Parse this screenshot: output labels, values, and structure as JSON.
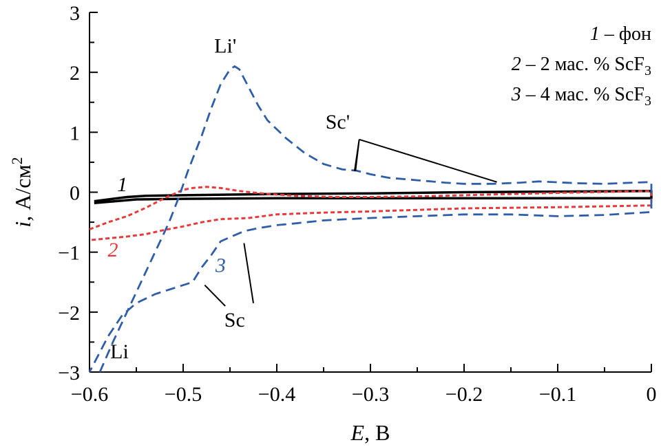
{
  "chart_data": {
    "type": "line",
    "xlabel": {
      "var": "E",
      "rest": ", В"
    },
    "ylabel": {
      "var": "i",
      "rest": ", А/см",
      "sup": "2"
    },
    "xlim": [
      -0.6,
      0
    ],
    "ylim": [
      -3,
      3
    ],
    "xticks": [
      {
        "v": -0.6,
        "label": "−0.6"
      },
      {
        "v": -0.5,
        "label": "−0.5"
      },
      {
        "v": -0.4,
        "label": "−0.4"
      },
      {
        "v": -0.3,
        "label": "−0.3"
      },
      {
        "v": -0.2,
        "label": "−0.2"
      },
      {
        "v": -0.1,
        "label": "−0.1"
      },
      {
        "v": 0,
        "label": "0"
      }
    ],
    "yticks": [
      {
        "v": -3,
        "label": "−3"
      },
      {
        "v": -2,
        "label": "−2"
      },
      {
        "v": -1,
        "label": "−1"
      },
      {
        "v": 0,
        "label": "0"
      },
      {
        "v": 1,
        "label": "1"
      },
      {
        "v": 2,
        "label": "2"
      },
      {
        "v": 3,
        "label": "3"
      }
    ],
    "legend": [
      {
        "num": "1",
        "text": " – фон",
        "sub": ""
      },
      {
        "num": "2",
        "text": " – 2 мас. % ScF",
        "sub": "3"
      },
      {
        "num": "3",
        "text": " – 4 мас. % ScF",
        "sub": "3"
      }
    ],
    "legend_position": "top-right",
    "series": [
      {
        "name": "1",
        "color": "#000000",
        "dash": "solid",
        "points": [
          [
            -0.595,
            -0.15
          ],
          [
            -0.58,
            -0.12
          ],
          [
            -0.56,
            -0.08
          ],
          [
            -0.54,
            -0.06
          ],
          [
            -0.5,
            -0.05
          ],
          [
            -0.45,
            -0.04
          ],
          [
            -0.4,
            -0.03
          ],
          [
            -0.3,
            -0.02
          ],
          [
            -0.2,
            0.0
          ],
          [
            -0.1,
            0.01
          ],
          [
            0.0,
            0.02
          ],
          [
            0.0,
            -0.1
          ],
          [
            -0.1,
            -0.1
          ],
          [
            -0.2,
            -0.1
          ],
          [
            -0.3,
            -0.1
          ],
          [
            -0.4,
            -0.1
          ],
          [
            -0.5,
            -0.11
          ],
          [
            -0.55,
            -0.12
          ],
          [
            -0.595,
            -0.18
          ]
        ]
      },
      {
        "name": "2",
        "color": "#e83a3a",
        "dash": "dot",
        "points": [
          [
            -0.6,
            -0.62
          ],
          [
            -0.58,
            -0.5
          ],
          [
            -0.56,
            -0.4
          ],
          [
            -0.54,
            -0.26
          ],
          [
            -0.52,
            -0.1
          ],
          [
            -0.5,
            0.04
          ],
          [
            -0.49,
            0.07
          ],
          [
            -0.475,
            0.09
          ],
          [
            -0.46,
            0.07
          ],
          [
            -0.44,
            0.02
          ],
          [
            -0.41,
            -0.03
          ],
          [
            -0.38,
            -0.06
          ],
          [
            -0.34,
            -0.08
          ],
          [
            -0.3,
            -0.08
          ],
          [
            -0.25,
            -0.07
          ],
          [
            -0.2,
            -0.05
          ],
          [
            -0.1,
            -0.01
          ],
          [
            0.0,
            0.02
          ],
          [
            0.0,
            -0.22
          ],
          [
            -0.1,
            -0.25
          ],
          [
            -0.2,
            -0.27
          ],
          [
            -0.3,
            -0.32
          ],
          [
            -0.35,
            -0.34
          ],
          [
            -0.4,
            -0.37
          ],
          [
            -0.43,
            -0.43
          ],
          [
            -0.46,
            -0.45
          ],
          [
            -0.48,
            -0.5
          ],
          [
            -0.5,
            -0.57
          ],
          [
            -0.52,
            -0.63
          ],
          [
            -0.54,
            -0.7
          ],
          [
            -0.56,
            -0.74
          ],
          [
            -0.58,
            -0.77
          ],
          [
            -0.6,
            -0.8
          ]
        ]
      },
      {
        "name": "3",
        "color": "#2f5ea8",
        "dash": "dash",
        "points": [
          [
            -0.589,
            -3.0
          ],
          [
            -0.575,
            -2.5
          ],
          [
            -0.56,
            -2.0
          ],
          [
            -0.545,
            -1.5
          ],
          [
            -0.53,
            -1.0
          ],
          [
            -0.515,
            -0.5
          ],
          [
            -0.505,
            -0.1
          ],
          [
            -0.495,
            0.35
          ],
          [
            -0.48,
            0.95
          ],
          [
            -0.47,
            1.4
          ],
          [
            -0.46,
            1.8
          ],
          [
            -0.45,
            2.05
          ],
          [
            -0.445,
            2.1
          ],
          [
            -0.44,
            2.05
          ],
          [
            -0.43,
            1.75
          ],
          [
            -0.42,
            1.45
          ],
          [
            -0.41,
            1.2
          ],
          [
            -0.39,
            0.9
          ],
          [
            -0.37,
            0.65
          ],
          [
            -0.35,
            0.47
          ],
          [
            -0.33,
            0.38
          ],
          [
            -0.315,
            0.36
          ],
          [
            -0.3,
            0.3
          ],
          [
            -0.28,
            0.24
          ],
          [
            -0.25,
            0.2
          ],
          [
            -0.22,
            0.16
          ],
          [
            -0.2,
            0.14
          ],
          [
            -0.17,
            0.14
          ],
          [
            -0.14,
            0.16
          ],
          [
            -0.12,
            0.18
          ],
          [
            -0.08,
            0.15
          ],
          [
            -0.05,
            0.14
          ],
          [
            -0.02,
            0.16
          ],
          [
            0.0,
            0.17
          ],
          [
            0.0,
            -0.33
          ],
          [
            -0.05,
            -0.38
          ],
          [
            -0.1,
            -0.4
          ],
          [
            -0.15,
            -0.37
          ],
          [
            -0.2,
            -0.37
          ],
          [
            -0.25,
            -0.4
          ],
          [
            -0.3,
            -0.43
          ],
          [
            -0.35,
            -0.47
          ],
          [
            -0.38,
            -0.52
          ],
          [
            -0.4,
            -0.55
          ],
          [
            -0.42,
            -0.6
          ],
          [
            -0.435,
            -0.65
          ],
          [
            -0.45,
            -0.75
          ],
          [
            -0.46,
            -0.82
          ],
          [
            -0.47,
            -1.05
          ],
          [
            -0.48,
            -1.25
          ],
          [
            -0.49,
            -1.5
          ],
          [
            -0.51,
            -1.6
          ],
          [
            -0.53,
            -1.7
          ],
          [
            -0.55,
            -1.85
          ],
          [
            -0.565,
            -2.05
          ],
          [
            -0.58,
            -2.4
          ],
          [
            -0.6,
            -3.0
          ]
        ]
      }
    ],
    "annotations": [
      {
        "id": "li-prime",
        "text": "Li'",
        "pos": [
          -0.455,
          2.33
        ]
      },
      {
        "id": "sc-prime",
        "text": "Sc'",
        "pos": [
          -0.335,
          1.06
        ]
      },
      {
        "id": "li",
        "text": "Li",
        "pos": [
          -0.568,
          -2.77
        ]
      },
      {
        "id": "sc",
        "text": "Sc",
        "pos": [
          -0.445,
          -2.24
        ]
      }
    ],
    "curve_labels": [
      {
        "id": "label-1",
        "text": "1",
        "color": "#000000",
        "pos": [
          -0.565,
          0.02
        ]
      },
      {
        "id": "label-2",
        "text": "2",
        "color": "#e83a3a",
        "pos": [
          -0.575,
          -1.07
        ]
      },
      {
        "id": "label-3",
        "text": "3",
        "color": "#2f5ea8",
        "pos": [
          -0.46,
          -1.33
        ]
      }
    ],
    "leader_lines": [
      {
        "id": "sc-prime-leader-a",
        "points": [
          [
            -0.317,
            0.35
          ],
          [
            -0.312,
            0.88
          ],
          [
            -0.316,
            0.35
          ]
        ]
      },
      {
        "id": "sc-prime-leader-b",
        "points": [
          [
            -0.312,
            0.88
          ],
          [
            -0.165,
            0.17
          ]
        ]
      },
      {
        "id": "sc-leader-a",
        "points": [
          [
            -0.477,
            -1.55
          ],
          [
            -0.455,
            -1.9
          ]
        ]
      },
      {
        "id": "sc-leader-b",
        "points": [
          [
            -0.435,
            -0.85
          ],
          [
            -0.425,
            -1.85
          ]
        ]
      }
    ]
  }
}
